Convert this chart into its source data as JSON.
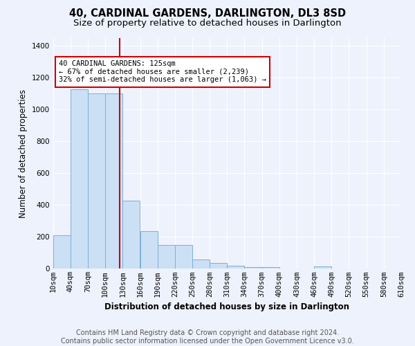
{
  "title": "40, CARDINAL GARDENS, DARLINGTON, DL3 8SD",
  "subtitle": "Size of property relative to detached houses in Darlington",
  "xlabel": "Distribution of detached houses by size in Darlington",
  "ylabel": "Number of detached properties",
  "bar_color": "#cce0f5",
  "bar_edge_color": "#7bafd4",
  "bins": [
    10,
    40,
    70,
    100,
    130,
    160,
    190,
    220,
    250,
    280,
    310,
    340,
    370,
    400,
    430,
    460,
    490,
    520,
    550,
    580,
    610
  ],
  "counts": [
    210,
    1130,
    1100,
    1100,
    430,
    235,
    148,
    148,
    60,
    35,
    18,
    12,
    12,
    0,
    0,
    14,
    0,
    0,
    0,
    0
  ],
  "property_size": 125,
  "annotation_text": "40 CARDINAL GARDENS: 125sqm\n← 67% of detached houses are smaller (2,239)\n32% of semi-detached houses are larger (1,063) →",
  "annotation_box_color": "#ffffff",
  "annotation_box_edge_color": "#cc0000",
  "red_line_x": 125,
  "ylim": [
    0,
    1450
  ],
  "yticks": [
    0,
    200,
    400,
    600,
    800,
    1000,
    1200,
    1400
  ],
  "xtick_labels": [
    "10sqm",
    "40sqm",
    "70sqm",
    "100sqm",
    "130sqm",
    "160sqm",
    "190sqm",
    "220sqm",
    "250sqm",
    "280sqm",
    "310sqm",
    "340sqm",
    "370sqm",
    "400sqm",
    "430sqm",
    "460sqm",
    "490sqm",
    "520sqm",
    "550sqm",
    "580sqm",
    "610sqm"
  ],
  "footer_line1": "Contains HM Land Registry data © Crown copyright and database right 2024.",
  "footer_line2": "Contains public sector information licensed under the Open Government Licence v3.0.",
  "bg_color": "#eef2fc",
  "grid_color": "#ffffff",
  "title_fontsize": 10.5,
  "subtitle_fontsize": 9.5,
  "xlabel_fontsize": 8.5,
  "ylabel_fontsize": 8.5,
  "tick_fontsize": 7.5,
  "footer_fontsize": 7,
  "annotation_fontsize": 7.5
}
